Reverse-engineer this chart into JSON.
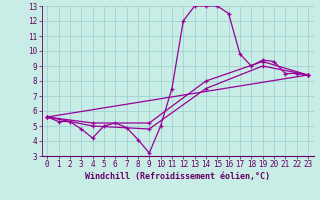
{
  "xlabel": "Windchill (Refroidissement éolien,°C)",
  "bg_color": "#c8ece6",
  "grid_color": "#a0d4cc",
  "line_color": "#990099",
  "axis_color": "#660066",
  "xlim": [
    -0.5,
    23.5
  ],
  "ylim": [
    3,
    13
  ],
  "xticks": [
    0,
    1,
    2,
    3,
    4,
    5,
    6,
    7,
    8,
    9,
    10,
    11,
    12,
    13,
    14,
    15,
    16,
    17,
    18,
    19,
    20,
    21,
    22,
    23
  ],
  "yticks": [
    3,
    4,
    5,
    6,
    7,
    8,
    9,
    10,
    11,
    12,
    13
  ],
  "line1_x": [
    0,
    1,
    2,
    3,
    4,
    5,
    6,
    7,
    8,
    9,
    10,
    11,
    12,
    13,
    14,
    15,
    16,
    17,
    18,
    19,
    20,
    21,
    22,
    23
  ],
  "line1_y": [
    5.6,
    5.3,
    5.3,
    4.8,
    4.2,
    5.0,
    5.2,
    4.9,
    4.1,
    3.2,
    5.0,
    7.5,
    12.0,
    13.0,
    13.0,
    13.0,
    12.5,
    9.8,
    9.0,
    9.4,
    9.3,
    8.5,
    8.5,
    8.4
  ],
  "line2_x": [
    0,
    23
  ],
  "line2_y": [
    5.6,
    8.4
  ],
  "line3_x": [
    0,
    4,
    9,
    14,
    19,
    23
  ],
  "line3_y": [
    5.6,
    5.0,
    4.8,
    7.5,
    9.0,
    8.4
  ],
  "line4_x": [
    0,
    4,
    9,
    14,
    19,
    23
  ],
  "line4_y": [
    5.6,
    5.2,
    5.2,
    8.0,
    9.3,
    8.4
  ],
  "tick_fontsize": 5.5,
  "xlabel_fontsize": 6.0
}
